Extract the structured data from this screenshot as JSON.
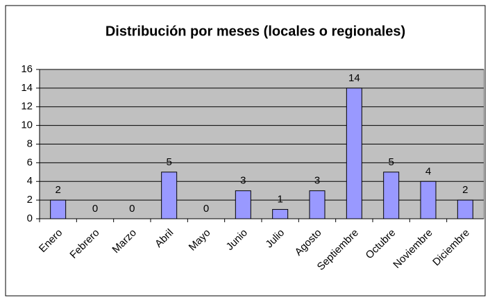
{
  "chart_data": {
    "type": "bar",
    "title": "Distribución por meses (locales o regionales)",
    "categories": [
      "Enero",
      "Febrero",
      "Marzo",
      "Abril",
      "Mayo",
      "Junio",
      "Julio",
      "Agosto",
      "Septiembre",
      "Octubre",
      "Noviembre",
      "Diciembre"
    ],
    "values": [
      2,
      0,
      0,
      5,
      0,
      3,
      1,
      3,
      14,
      5,
      4,
      2
    ],
    "color": "#9999ff",
    "ylim": [
      0,
      16
    ],
    "yticks": [
      0,
      2,
      4,
      6,
      8,
      10,
      12,
      14,
      16
    ],
    "grid": true,
    "data_labels": true
  }
}
